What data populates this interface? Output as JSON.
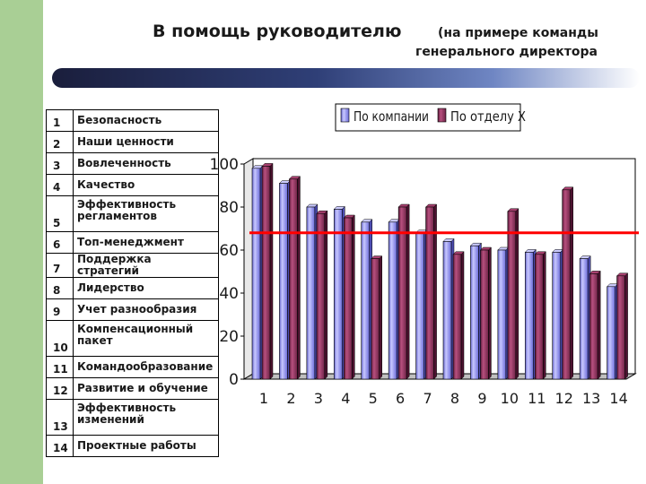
{
  "page": {
    "title_main": "В помощь руководителю",
    "title_sub_line1": "(на примере команды",
    "title_sub_line2": "генерального директора"
  },
  "factors": [
    {
      "num": "1",
      "label": "Безопасность"
    },
    {
      "num": "2",
      "label": "Наши ценности"
    },
    {
      "num": "3",
      "label": "Вовлеченность"
    },
    {
      "num": "4",
      "label": "Качество"
    },
    {
      "num": "5",
      "label": "Эффективность регламентов"
    },
    {
      "num": "6",
      "label": "Топ-менеджмент"
    },
    {
      "num": "7",
      "label": "Поддержка стратегий"
    },
    {
      "num": "8",
      "label": "Лидерство"
    },
    {
      "num": "9",
      "label": "Учет разнообразия"
    },
    {
      "num": "10",
      "label": "Компенсационный пакет"
    },
    {
      "num": "11",
      "label": "Командообразование"
    },
    {
      "num": "12",
      "label": "Развитие и обучение"
    },
    {
      "num": "13",
      "label": "Эффективность изменений"
    },
    {
      "num": "14",
      "label": "Проектные работы"
    }
  ],
  "chart_data": {
    "type": "bar",
    "categories": [
      "1",
      "2",
      "3",
      "4",
      "5",
      "6",
      "7",
      "8",
      "9",
      "10",
      "11",
      "12",
      "13",
      "14"
    ],
    "series": [
      {
        "name": "По компании",
        "color": "#9999ff",
        "values": [
          98,
          91,
          80,
          79,
          73,
          73,
          68,
          64,
          62,
          60,
          59,
          59,
          56,
          43
        ]
      },
      {
        "name": "По отделу X",
        "color": "#993366",
        "values": [
          99,
          93,
          77,
          75,
          56,
          80,
          80,
          58,
          60,
          78,
          58,
          88,
          49,
          48
        ]
      }
    ],
    "ylim": [
      0,
      100
    ],
    "yticks": [
      0,
      20,
      40,
      60,
      80,
      100
    ],
    "reference_line": {
      "value": 68,
      "color": "#ff0000"
    },
    "legend_position": "top",
    "grid": false
  }
}
